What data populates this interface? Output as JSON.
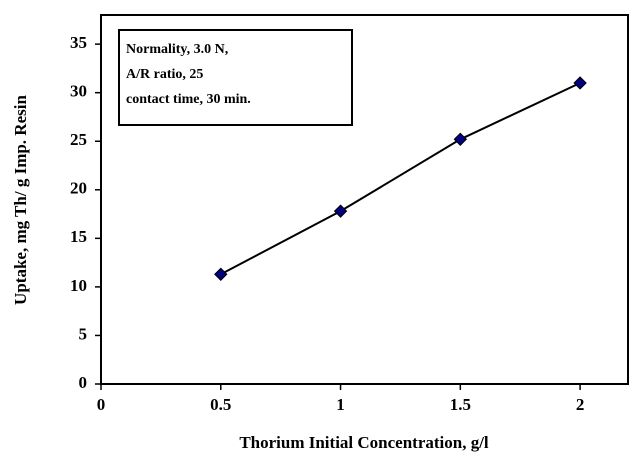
{
  "chart_data": {
    "type": "line",
    "x_label": "Thorium Initial Concentration, g/l",
    "y_label": "Uptake, mg Th/ g Imp. Resin",
    "annotations": [
      "Normality, 3.0 N,",
      "A/R ratio, 25",
      "contact time, 30  min."
    ],
    "x": [
      0.5,
      1,
      1.5,
      2
    ],
    "series": [
      {
        "color": "#000080",
        "values": [
          11.3,
          17.8,
          25.2,
          31.0
        ]
      }
    ],
    "xlim": [
      0,
      2.2
    ],
    "xticks": [
      0,
      0.5,
      1,
      1.5,
      2
    ],
    "ylim": [
      0,
      38
    ],
    "yticks": [
      0,
      5,
      10,
      15,
      20,
      25,
      30,
      35
    ]
  }
}
